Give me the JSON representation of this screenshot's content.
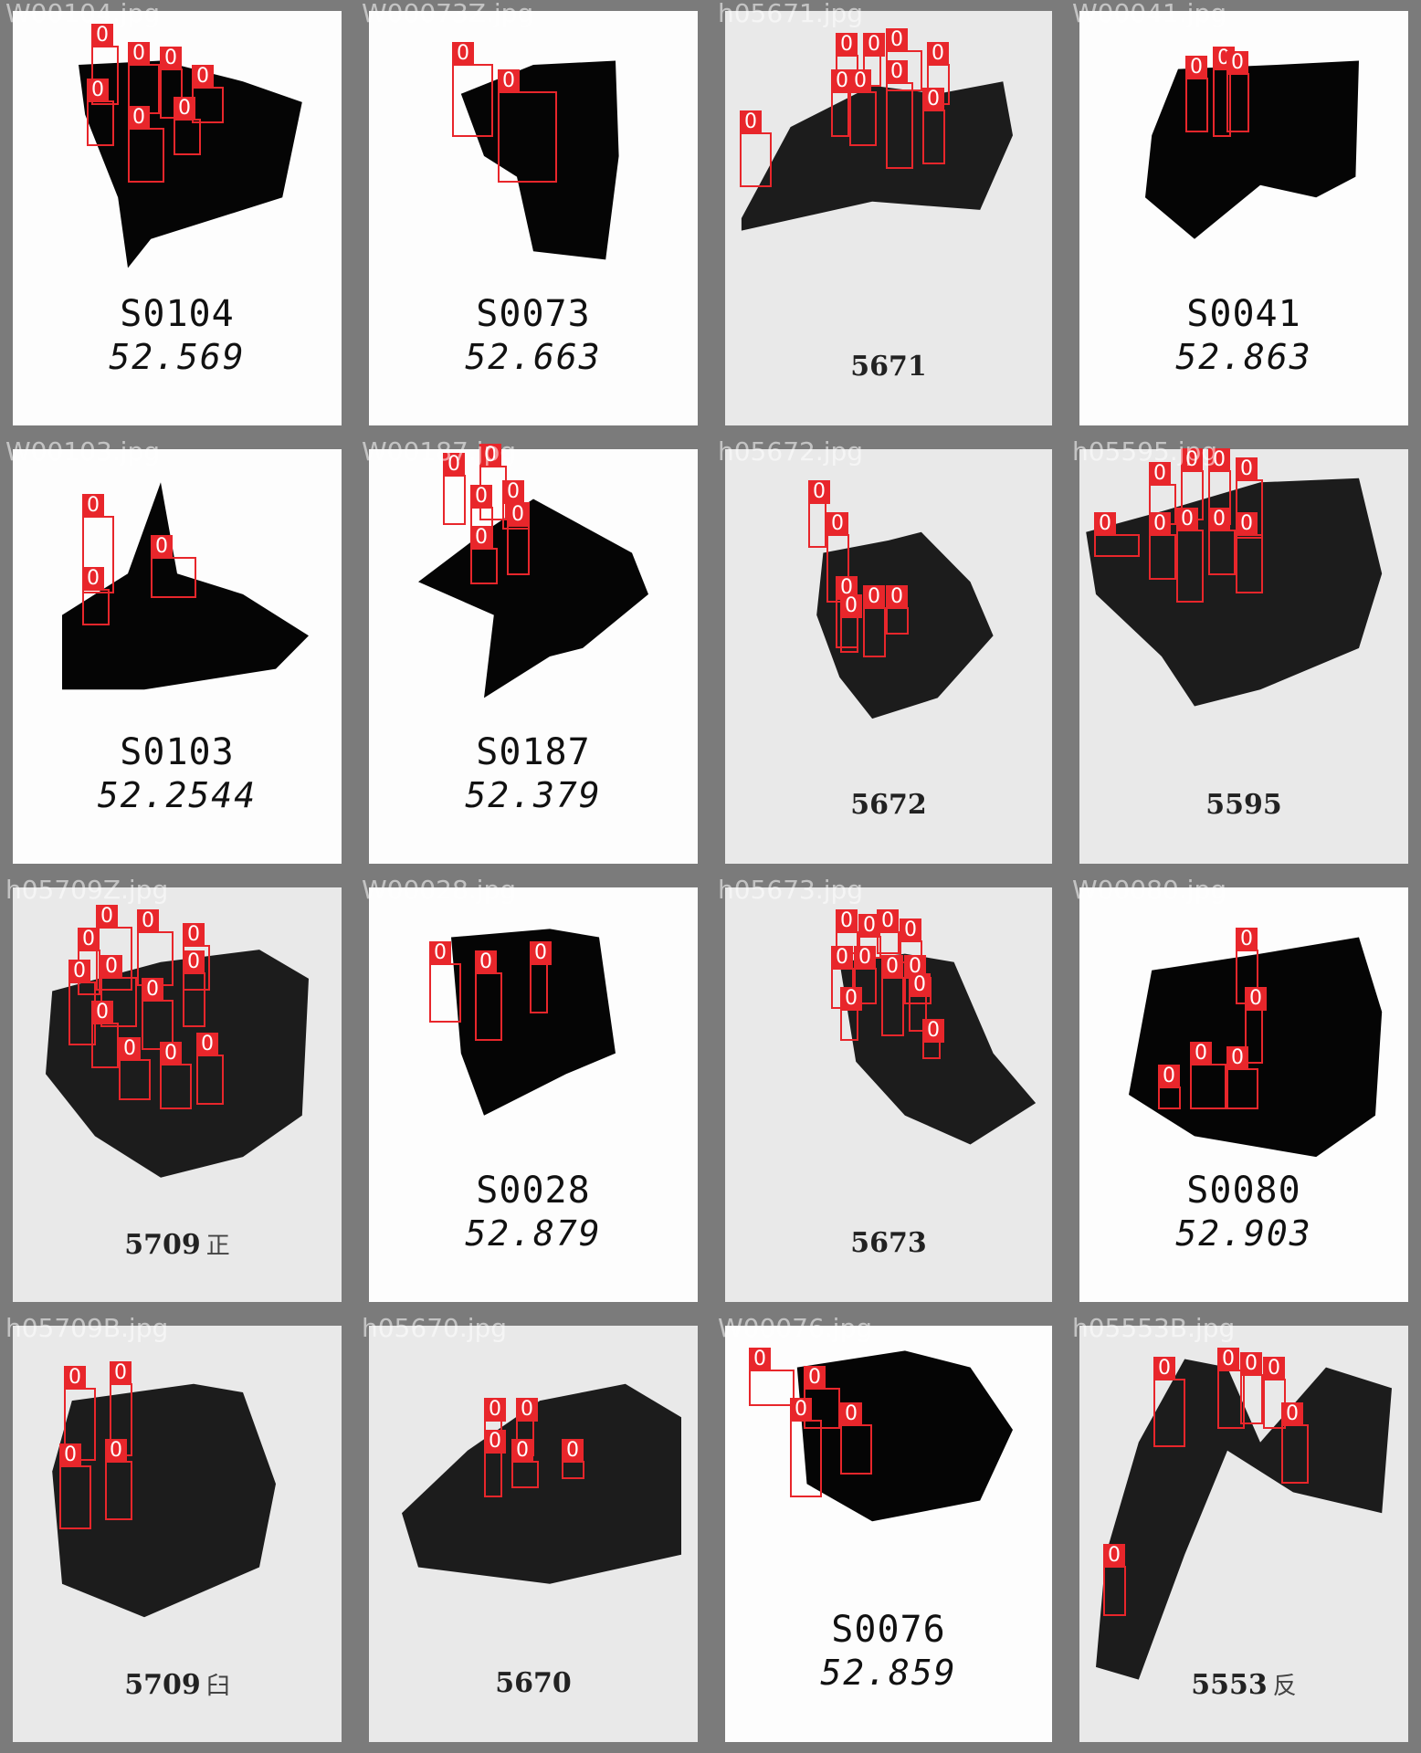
{
  "detection_label": "0",
  "panels": [
    {
      "filename": "W00104.jpg",
      "caption_style": "mono",
      "caption_lines": [
        "S0104",
        "52.569"
      ],
      "paper": "white",
      "boxes": [
        [
          100,
          50,
          30,
          65
        ],
        [
          140,
          70,
          35,
          55
        ],
        [
          175,
          75,
          25,
          55
        ],
        [
          210,
          95,
          35,
          40
        ],
        [
          95,
          110,
          30,
          50
        ],
        [
          140,
          140,
          40,
          60
        ],
        [
          190,
          130,
          30,
          40
        ]
      ]
    },
    {
      "filename": "W00073Z.jpg",
      "caption_style": "mono",
      "caption_lines": [
        "S0073",
        "52.663"
      ],
      "paper": "white",
      "boxes": [
        [
          105,
          70,
          45,
          80
        ],
        [
          155,
          100,
          65,
          100
        ]
      ]
    },
    {
      "filename": "h05671.jpg",
      "caption_style": "serif",
      "caption_lines": [
        "5671"
      ],
      "caption_side": "",
      "paper": "gray",
      "boxes": [
        [
          135,
          60,
          25,
          40
        ],
        [
          165,
          60,
          20,
          35
        ],
        [
          190,
          55,
          40,
          45
        ],
        [
          235,
          70,
          25,
          45
        ],
        [
          130,
          100,
          20,
          50
        ],
        [
          150,
          100,
          30,
          60
        ],
        [
          190,
          90,
          30,
          95
        ],
        [
          230,
          120,
          25,
          60
        ],
        [
          30,
          145,
          35,
          60
        ]
      ]
    },
    {
      "filename": "W00041.jpg",
      "caption_style": "mono",
      "caption_lines": [
        "S0041",
        "52.863"
      ],
      "paper": "white",
      "boxes": [
        [
          130,
          85,
          25,
          60
        ],
        [
          160,
          75,
          20,
          75
        ],
        [
          175,
          80,
          25,
          65
        ]
      ]
    },
    {
      "filename": "W00103.jpg",
      "caption_style": "mono",
      "caption_lines": [
        "S0103",
        "52.2544"
      ],
      "paper": "white",
      "boxes": [
        [
          90,
          85,
          35,
          85
        ],
        [
          165,
          130,
          50,
          45
        ],
        [
          90,
          165,
          30,
          40
        ]
      ]
    },
    {
      "filename": "W00187.jpg",
      "caption_style": "mono",
      "caption_lines": [
        "S0187",
        "52.379"
      ],
      "paper": "white",
      "boxes": [
        [
          95,
          40,
          25,
          55
        ],
        [
          135,
          30,
          30,
          60
        ],
        [
          125,
          75,
          25,
          45
        ],
        [
          160,
          70,
          30,
          30
        ],
        [
          165,
          95,
          25,
          55
        ],
        [
          125,
          120,
          30,
          40
        ]
      ]
    },
    {
      "filename": "h05672.jpg",
      "caption_style": "serif",
      "caption_lines": [
        "5672"
      ],
      "caption_side": "",
      "paper": "gray",
      "boxes": [
        [
          105,
          70,
          20,
          50
        ],
        [
          125,
          105,
          25,
          75
        ],
        [
          135,
          175,
          25,
          55
        ],
        [
          165,
          185,
          25,
          55
        ],
        [
          190,
          185,
          25,
          30
        ],
        [
          140,
          195,
          20,
          40
        ]
      ]
    },
    {
      "filename": "h05595.jpg",
      "caption_style": "serif",
      "caption_lines": [
        "5595"
      ],
      "caption_side": "",
      "paper": "gray",
      "boxes": [
        [
          90,
          50,
          30,
          45
        ],
        [
          125,
          35,
          25,
          55
        ],
        [
          155,
          35,
          25,
          60
        ],
        [
          185,
          45,
          30,
          65
        ],
        [
          30,
          105,
          50,
          25
        ],
        [
          90,
          105,
          30,
          50
        ],
        [
          120,
          100,
          30,
          80
        ],
        [
          155,
          100,
          30,
          50
        ],
        [
          185,
          105,
          30,
          65
        ]
      ]
    },
    {
      "filename": "h05709Z.jpg",
      "caption_style": "serif",
      "caption_lines": [
        "5709"
      ],
      "caption_side": "正",
      "paper": "gray",
      "boxes": [
        [
          85,
          80,
          25,
          50
        ],
        [
          105,
          55,
          40,
          70
        ],
        [
          150,
          60,
          40,
          60
        ],
        [
          200,
          75,
          30,
          50
        ],
        [
          75,
          115,
          30,
          70
        ],
        [
          110,
          110,
          40,
          55
        ],
        [
          155,
          135,
          35,
          55
        ],
        [
          200,
          105,
          25,
          60
        ],
        [
          100,
          160,
          30,
          50
        ],
        [
          130,
          200,
          35,
          45
        ],
        [
          175,
          205,
          35,
          50
        ],
        [
          215,
          195,
          30,
          55
        ]
      ]
    },
    {
      "filename": "W00028.jpg",
      "caption_style": "mono",
      "caption_lines": [
        "S0028",
        "52.879"
      ],
      "paper": "white",
      "boxes": [
        [
          80,
          95,
          35,
          65
        ],
        [
          130,
          105,
          30,
          75
        ],
        [
          190,
          95,
          20,
          55
        ]
      ]
    },
    {
      "filename": "h05673.jpg",
      "caption_style": "serif",
      "caption_lines": [
        "5673"
      ],
      "caption_side": "",
      "paper": "gray",
      "boxes": [
        [
          135,
          60,
          25,
          25
        ],
        [
          160,
          65,
          25,
          25
        ],
        [
          180,
          60,
          25,
          25
        ],
        [
          205,
          70,
          25,
          25
        ],
        [
          130,
          100,
          25,
          45
        ],
        [
          155,
          100,
          25,
          40
        ],
        [
          185,
          110,
          25,
          65
        ],
        [
          210,
          110,
          30,
          30
        ],
        [
          140,
          145,
          20,
          35
        ],
        [
          215,
          130,
          20,
          40
        ],
        [
          230,
          180,
          20,
          20
        ]
      ]
    },
    {
      "filename": "W00080.jpg",
      "caption_style": "mono",
      "caption_lines": [
        "S0080",
        "52.903"
      ],
      "paper": "white",
      "boxes": [
        [
          185,
          80,
          25,
          60
        ],
        [
          195,
          145,
          20,
          60
        ],
        [
          135,
          205,
          40,
          50
        ],
        [
          175,
          210,
          35,
          45
        ],
        [
          100,
          230,
          25,
          25
        ]
      ]
    },
    {
      "filename": "h05709B.jpg",
      "caption_style": "serif",
      "caption_lines": [
        "5709"
      ],
      "caption_side": "臼",
      "paper": "gray",
      "boxes": [
        [
          70,
          80,
          35,
          80
        ],
        [
          120,
          75,
          25,
          80
        ],
        [
          65,
          165,
          35,
          70
        ],
        [
          115,
          160,
          30,
          65
        ]
      ]
    },
    {
      "filename": "h05670.jpg",
      "caption_style": "serif",
      "caption_lines": [
        "5670"
      ],
      "caption_side": "",
      "paper": "gray",
      "boxes": [
        [
          140,
          115,
          20,
          30
        ],
        [
          175,
          115,
          20,
          40
        ],
        [
          140,
          150,
          20,
          50
        ],
        [
          170,
          160,
          30,
          30
        ],
        [
          225,
          160,
          25,
          20
        ]
      ]
    },
    {
      "filename": "W00076.jpg",
      "caption_style": "mono",
      "caption_lines": [
        "S0076",
        "52.859"
      ],
      "paper": "white",
      "boxes": [
        [
          40,
          60,
          50,
          40
        ],
        [
          100,
          80,
          40,
          45
        ],
        [
          85,
          115,
          35,
          85
        ],
        [
          140,
          120,
          35,
          55
        ]
      ]
    },
    {
      "filename": "h05553B.jpg",
      "caption_style": "serif",
      "caption_lines": [
        "5553"
      ],
      "caption_side": "反",
      "paper": "gray",
      "boxes": [
        [
          95,
          70,
          35,
          75
        ],
        [
          165,
          60,
          30,
          65
        ],
        [
          190,
          65,
          25,
          55
        ],
        [
          215,
          70,
          25,
          55
        ],
        [
          235,
          120,
          30,
          65
        ],
        [
          40,
          275,
          25,
          55
        ]
      ]
    }
  ]
}
